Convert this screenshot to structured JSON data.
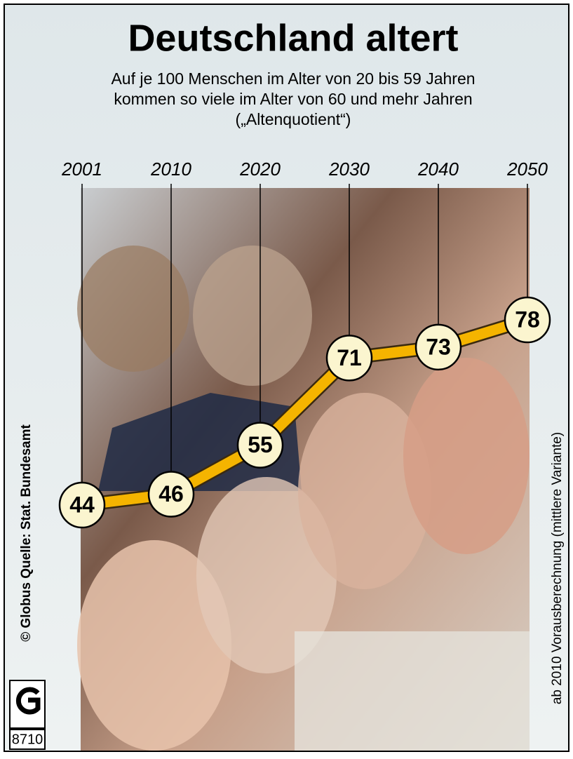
{
  "chart_data": {
    "type": "line",
    "title": "Deutschland altert",
    "subtitle": [
      "Auf je 100 Menschen im Alter von 20 bis 59 Jahren",
      "kommen so viele im Alter von 60 und mehr Jahren",
      "(„Altenquotient“)"
    ],
    "categories": [
      "2001",
      "2010",
      "2020",
      "2030",
      "2040",
      "2050"
    ],
    "values": [
      44,
      46,
      55,
      71,
      73,
      78
    ],
    "color": "#f5b400",
    "marker_color": "#fbf5cf",
    "source": "© Globus   Quelle: Stat. Bundesamt",
    "note": "ab 2010 Vorausberechnung (mittlere Variante)",
    "logo_number": "8710"
  }
}
